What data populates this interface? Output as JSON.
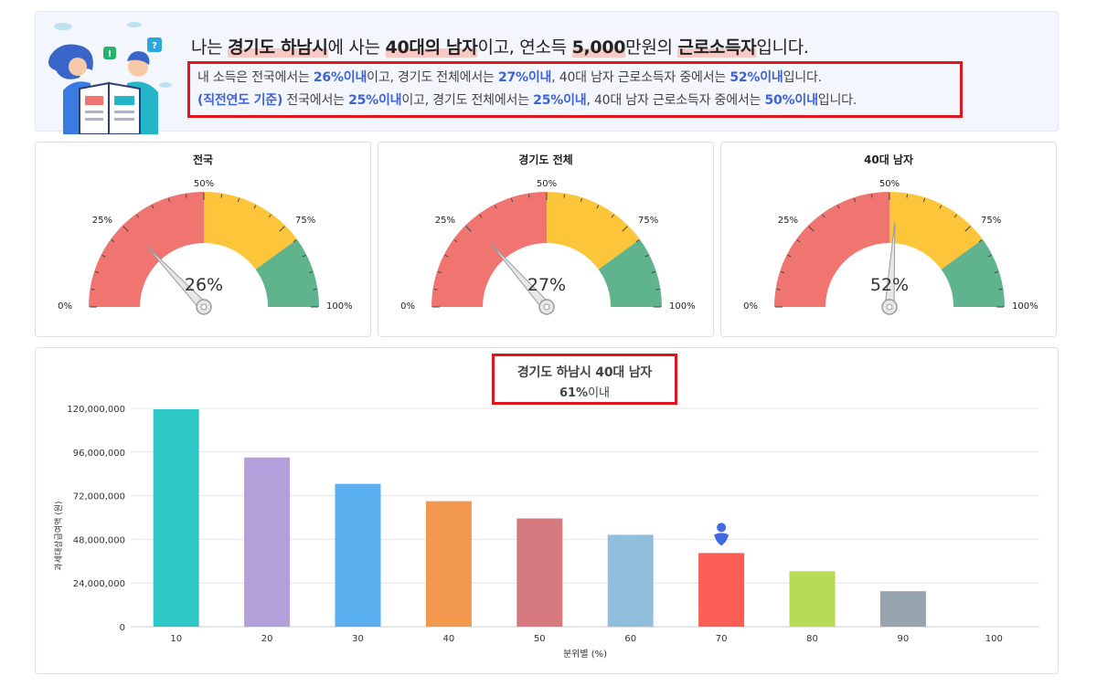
{
  "summary": {
    "headline": {
      "prefix": "나는 ",
      "region": "경기도 하남시",
      "part2": "에 사는 ",
      "group": "40대의 남자",
      "part3": "이고, 연소득 ",
      "income": "5,000",
      "part4": "만원의 ",
      "type": "근로소득자",
      "suffix": "입니다."
    },
    "current": {
      "t1": "내 소득은 전국에서는 ",
      "national": "26%이내",
      "t2": "이고, 경기도 전체에서는 ",
      "province": "27%이내",
      "t3": ", 40대 남자 근로소득자 중에서는 ",
      "group": "52%이내",
      "t4": "입니다."
    },
    "previous": {
      "basis": "(직전연도 기준)",
      "t1": " 전국에서는 ",
      "national": "25%이내",
      "t2": "이고, 경기도 전체에서는 ",
      "province": "25%이내",
      "t3": ", 40대 남자 근로소득자 중에서는 ",
      "group": "50%이내",
      "t4": "입니다."
    }
  },
  "gauges": [
    {
      "title": "전국",
      "value": 26,
      "value_label": "26%"
    },
    {
      "title": "경기도 전체",
      "value": 27,
      "value_label": "27%"
    },
    {
      "title": "40대 남자",
      "value": 52,
      "value_label": "52%"
    }
  ],
  "gauge_scale": {
    "tick_labels": [
      "0%",
      "25%",
      "50%",
      "75%",
      "100%"
    ],
    "bands": [
      {
        "from": 0,
        "to": 50,
        "color": "#f07470"
      },
      {
        "from": 50,
        "to": 80,
        "color": "#fcc53a"
      },
      {
        "from": 80,
        "to": 100,
        "color": "#5fb48e"
      }
    ]
  },
  "chart_data": {
    "type": "bar",
    "title": "경기도 하남시 40대 남자",
    "subtitle_value": "61%",
    "subtitle_suffix": "이내",
    "xlabel": "분위별 (%)",
    "ylabel": "과세대상급여액 (원)",
    "categories": [
      "10",
      "20",
      "30",
      "40",
      "50",
      "60",
      "70",
      "80",
      "90",
      "100"
    ],
    "values": [
      119500000,
      93000000,
      78500000,
      69000000,
      59500000,
      50500000,
      40500000,
      30500000,
      19500000,
      0
    ],
    "colors": [
      "#2ec8c8",
      "#b3a0db",
      "#5ab0ef",
      "#f2994f",
      "#d67a7f",
      "#91bedc",
      "#fa5e55",
      "#b6dc56",
      "#98a4b0",
      "#cccccc"
    ],
    "ylim": [
      0,
      120000000
    ],
    "yticks": [
      0,
      24000000,
      48000000,
      72000000,
      96000000,
      120000000
    ],
    "ytick_labels": [
      "0",
      "24,000,000",
      "48,000,000",
      "72,000,000",
      "96,000,000",
      "120,000,000"
    ],
    "marker_category": "70",
    "marker_color": "#4169e1",
    "grid": true,
    "legend": "none"
  }
}
